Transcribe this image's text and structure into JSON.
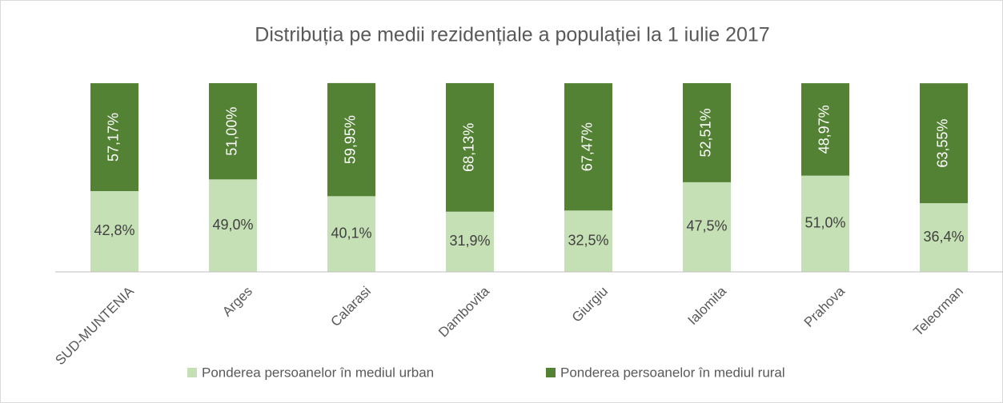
{
  "chart_data": {
    "type": "stacked_bar",
    "title": "Distribuția pe medii rezidențiale a populației la 1 iulie 2017",
    "categories": [
      "SUD-MUNTENIA",
      "Arges",
      "Calarasi",
      "Dambovita",
      "Giurgiu",
      "Ialomita",
      "Prahova",
      "Teleorman"
    ],
    "series": [
      {
        "name": "Ponderea persoanelor în mediul urban",
        "color": "#c5e0b4",
        "values": [
          42.8,
          49.0,
          40.1,
          31.9,
          32.5,
          47.5,
          51.0,
          36.4
        ],
        "value_labels": [
          "42,8%",
          "49,0%",
          "40,1%",
          "31,9%",
          "32,5%",
          "47,5%",
          "51,0%",
          "36,4%"
        ]
      },
      {
        "name": "Ponderea persoanelor în mediul rural",
        "color": "#548235",
        "values": [
          57.17,
          51.0,
          59.95,
          68.13,
          67.47,
          52.51,
          48.97,
          63.55
        ],
        "value_labels": [
          "57,17%",
          "51,00%",
          "59,95%",
          "68,13%",
          "67,47%",
          "52,51%",
          "48,97%",
          "63,55%"
        ]
      }
    ],
    "ylim": [
      0,
      100
    ],
    "legend": "bottom"
  }
}
